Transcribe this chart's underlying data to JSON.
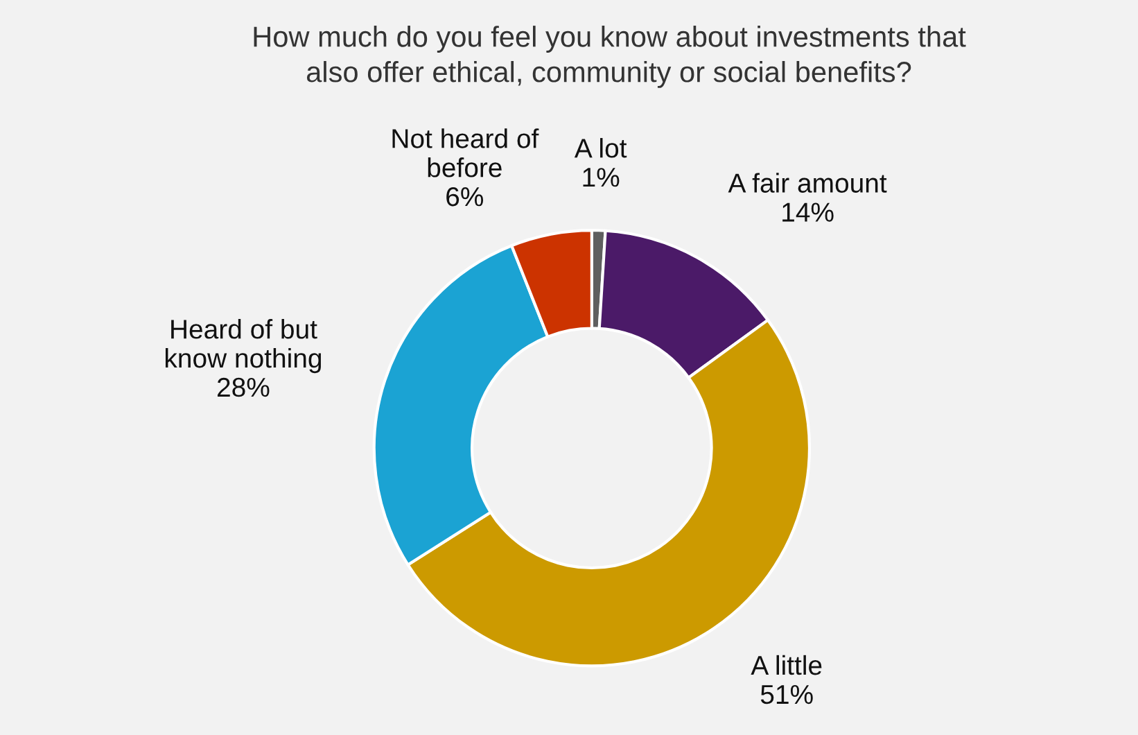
{
  "chart_data": {
    "type": "donut",
    "title": "How much do you feel you know about investments that\nalso offer ethical, community or social benefits?",
    "categories": [
      "A lot",
      "A fair amount",
      "A little",
      "Heard of but\nknow nothing",
      "Not heard of\nbefore"
    ],
    "values": [
      1,
      14,
      51,
      28,
      6
    ],
    "value_labels": [
      "1%",
      "14%",
      "51%",
      "28%",
      "6%"
    ],
    "colors": [
      "#5f5f5f",
      "#4b1a68",
      "#cc9a00",
      "#1ba3d3",
      "#cc3300"
    ],
    "legend": false
  }
}
